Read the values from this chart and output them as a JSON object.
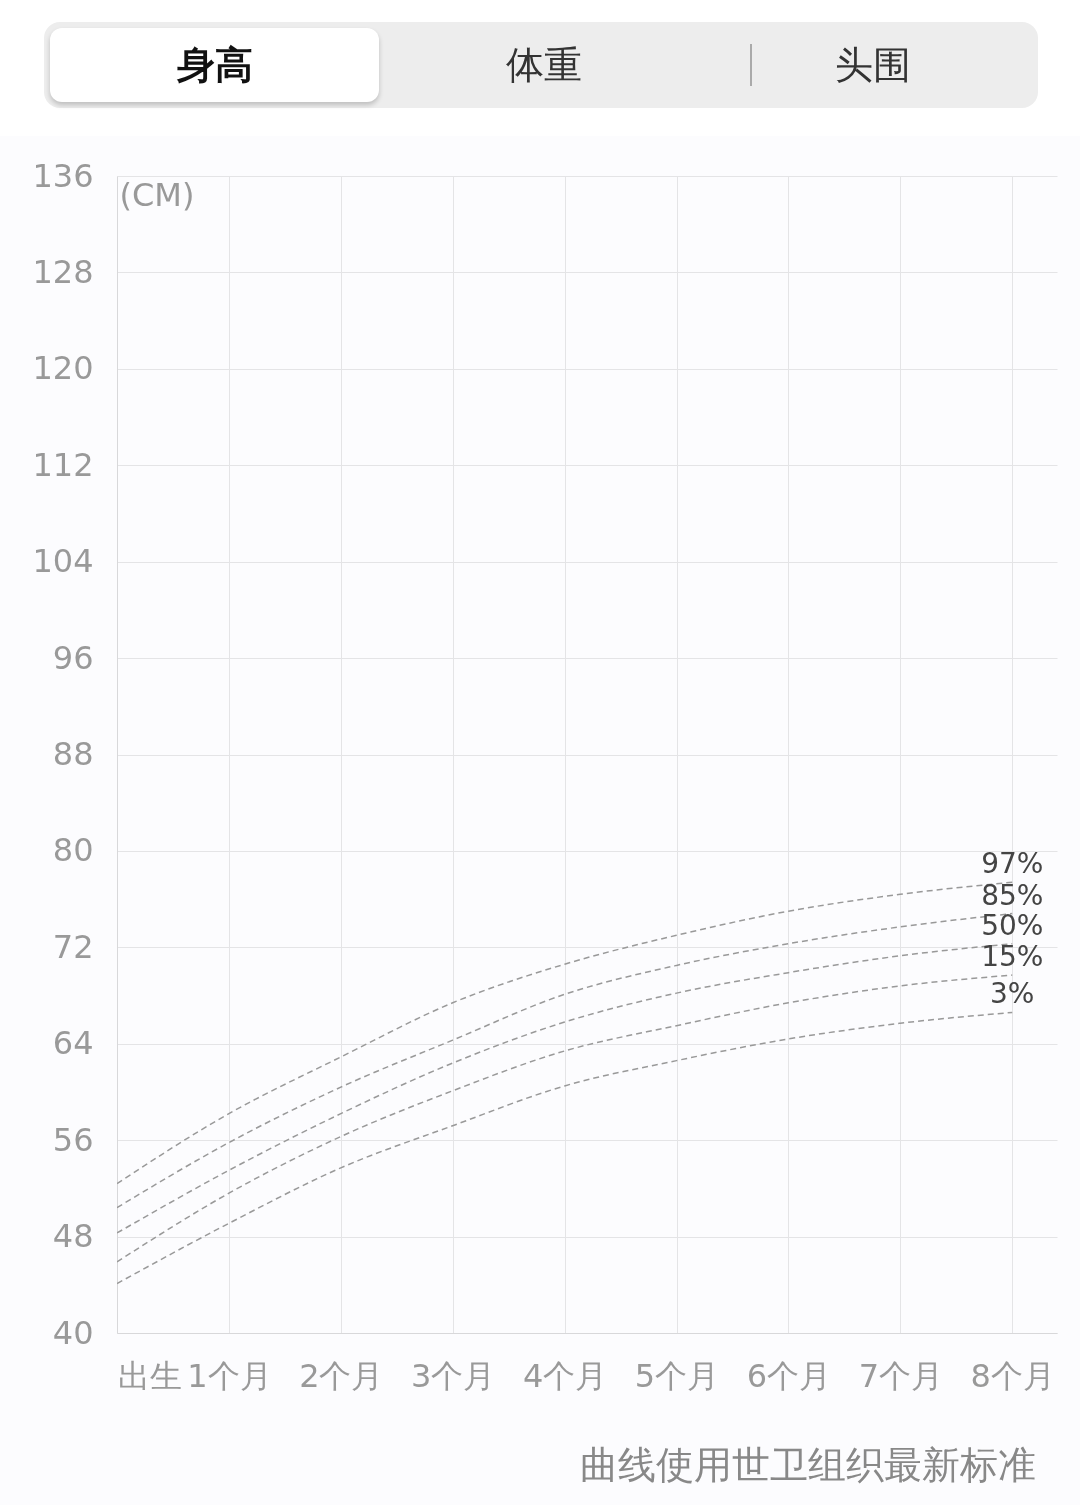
{
  "chart_data": {
    "type": "line",
    "title": "身高",
    "ylabel": "(CM)",
    "annotations": [
      "体重",
      "头围",
      "曲线使用世卫组织最新标准"
    ],
    "x": [
      0,
      1,
      2,
      3,
      4,
      5,
      6,
      7,
      8
    ],
    "series": [
      {
        "name": "97%",
        "color": "#999999",
        "values": [
          52.4,
          58.2,
          62.9,
          67.4,
          70.6,
          73.0,
          75.0,
          76.4,
          77.4
        ]
      },
      {
        "name": "85%",
        "color": "#999999",
        "values": [
          50.4,
          55.8,
          60.4,
          64.3,
          68.1,
          70.5,
          72.3,
          73.7,
          74.8
        ]
      },
      {
        "name": "50%",
        "color": "#999999",
        "values": [
          48.3,
          53.5,
          58.2,
          62.4,
          65.8,
          68.2,
          69.9,
          71.3,
          72.3
        ]
      },
      {
        "name": "15%",
        "color": "#999999",
        "values": [
          45.9,
          51.6,
          56.3,
          60.1,
          63.4,
          65.5,
          67.4,
          68.8,
          69.7
        ]
      },
      {
        "name": "3%",
        "color": "#999999",
        "values": [
          44.1,
          49.1,
          53.7,
          57.2,
          60.5,
          62.6,
          64.4,
          65.7,
          66.6
        ]
      }
    ],
    "xlim": [
      0,
      8.4
    ],
    "xticks": [
      {
        "value": 0,
        "label": "出生"
      },
      {
        "value": 1,
        "label": "1个月"
      },
      {
        "value": 2,
        "label": "2个月"
      },
      {
        "value": 3,
        "label": "3个月"
      },
      {
        "value": 4,
        "label": "4个月"
      },
      {
        "value": 5,
        "label": "5个月"
      },
      {
        "value": 6,
        "label": "6个月"
      },
      {
        "value": 7,
        "label": "7个月"
      },
      {
        "value": 8,
        "label": "8个月"
      }
    ],
    "ylim": [
      40,
      136
    ],
    "yticks": [
      40,
      48,
      56,
      64,
      72,
      80,
      88,
      96,
      104,
      112,
      120,
      128,
      136
    ],
    "grid": true,
    "legend": false,
    "marker": "none",
    "line_style": "dashed"
  }
}
